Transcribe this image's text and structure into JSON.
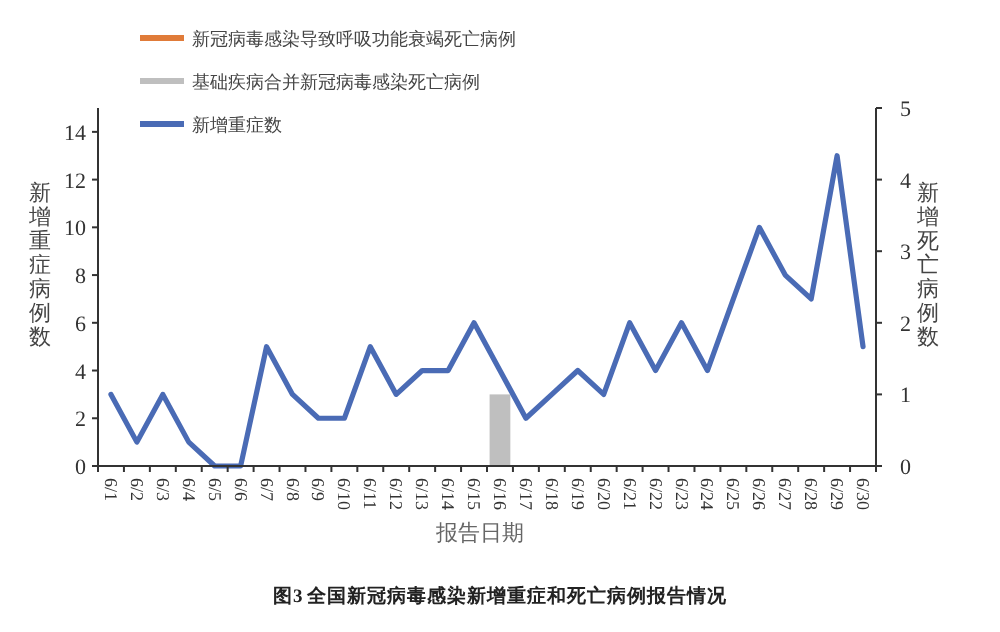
{
  "chart_data": {
    "type": "line",
    "title": "图3 全国新冠病毒感染新增重症和死亡病例报告情况",
    "xlabel": "报告日期",
    "ylabel": "新增重症病例数",
    "y2label": "新增死亡病例数",
    "categories": [
      "6/1",
      "6/2",
      "6/3",
      "6/4",
      "6/5",
      "6/6",
      "6/7",
      "6/8",
      "6/9",
      "6/10",
      "6/11",
      "6/12",
      "6/13",
      "6/14",
      "6/15",
      "6/16",
      "6/17",
      "6/18",
      "6/19",
      "6/20",
      "6/21",
      "6/22",
      "6/23",
      "6/24",
      "6/25",
      "6/26",
      "6/27",
      "6/28",
      "6/29",
      "6/30"
    ],
    "stacked": true,
    "series": [
      {
        "name": "新冠病毒感染导致呼吸功能衰竭死亡病例",
        "type": "bar",
        "axis": "y2",
        "color": "#e07b39",
        "values": [
          0,
          0,
          0,
          0,
          0,
          0,
          0,
          0,
          0,
          0,
          0,
          0,
          0,
          0,
          0,
          0,
          0,
          0,
          0,
          0,
          0,
          0,
          0,
          0,
          0,
          0,
          0,
          0,
          0,
          0
        ]
      },
      {
        "name": "基础疾病合并新冠病毒感染死亡病例",
        "type": "bar",
        "axis": "y2",
        "color": "#bfbfbf",
        "values": [
          0,
          0,
          0,
          0,
          0,
          0,
          0,
          0,
          0,
          0,
          0,
          0,
          0,
          0,
          0,
          1,
          0,
          0,
          0,
          0,
          0,
          0,
          0,
          0,
          0,
          0,
          0,
          0,
          0,
          0
        ]
      },
      {
        "name": "新增重症数",
        "color": "#4a6bb5",
        "values": [
          3,
          1,
          3,
          1,
          0,
          0,
          5,
          3,
          2,
          2,
          5,
          3,
          4,
          4,
          6,
          4,
          2,
          3,
          4,
          3,
          6,
          4,
          6,
          4,
          7,
          10,
          8,
          7,
          13,
          5
        ]
      }
    ],
    "ylim": [
      0,
      15
    ],
    "yticks": [
      0,
      2,
      4,
      6,
      8,
      10,
      12,
      14
    ],
    "y2lim": [
      0,
      5
    ],
    "y2ticks": [
      0,
      1,
      2,
      3,
      4,
      5
    ],
    "legend": "top left",
    "grid": false,
    "marker": "none",
    "line_style": "solid"
  }
}
